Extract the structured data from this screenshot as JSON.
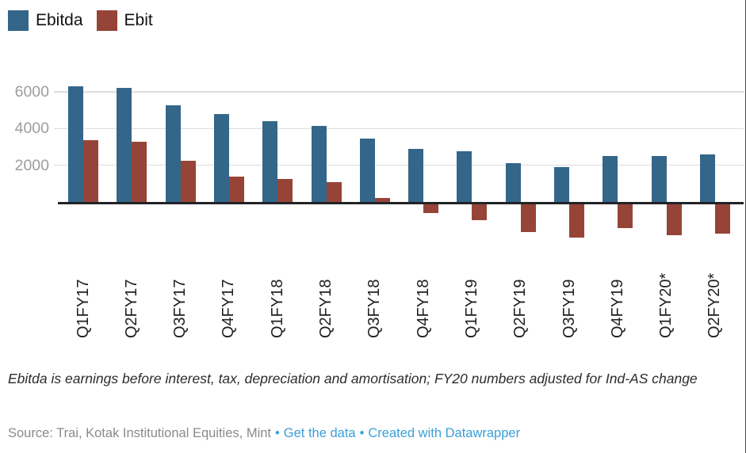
{
  "chart_data": {
    "type": "bar",
    "title": "",
    "categories": [
      "Q1FY17",
      "Q2FY17",
      "Q3FY17",
      "Q4FY17",
      "Q1FY18",
      "Q2FY18",
      "Q3FY18",
      "Q4FY18",
      "Q1FY19",
      "Q2FY19",
      "Q3FY19",
      "Q4FY19",
      "Q1FY20*",
      "Q2FY20*"
    ],
    "series": [
      {
        "name": "Ebitda",
        "color": "#336689",
        "values": [
          6300,
          6200,
          5250,
          4800,
          4400,
          4150,
          3450,
          2900,
          2750,
          2100,
          1900,
          2500,
          2500,
          2600
        ]
      },
      {
        "name": "Ebit",
        "color": "#964437",
        "values": [
          3350,
          3300,
          2250,
          1400,
          1250,
          1100,
          200,
          -500,
          -900,
          -1550,
          -1850,
          -1300,
          -1700,
          -1600
        ]
      }
    ],
    "xlabel": "",
    "ylabel": "",
    "yticks": [
      2000,
      4000,
      6000
    ],
    "ylim": [
      -2100,
      6700
    ],
    "grid": true,
    "zero_line": true,
    "legend_position": "top-left"
  },
  "legend": {
    "items": [
      {
        "label": "Ebitda"
      },
      {
        "label": "Ebit"
      }
    ]
  },
  "footer": {
    "note": "Ebitda is earnings before interest, tax, depreciation and amortisation; FY20 numbers adjusted for Ind-AS change",
    "source": "Source: Trai, Kotak Institutional Equities, Mint",
    "bullet": "•",
    "link_get_data": "Get the data",
    "link_datawrapper": "Created with Datawrapper"
  },
  "colors": {
    "ebitda": "#336689",
    "ebit": "#964437",
    "link": "#3aa0d9",
    "gridline": "#dcdcdc",
    "zero_line": "#222326",
    "y_tick_text": "#9d9d9d",
    "x_tick_text": "#1f1f20"
  }
}
